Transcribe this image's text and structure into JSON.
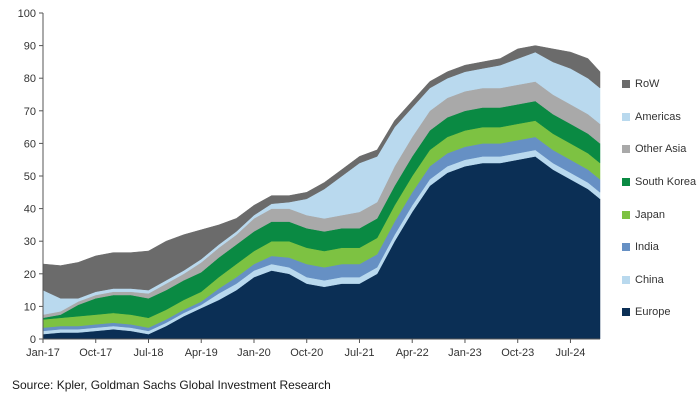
{
  "chart_data": {
    "type": "area",
    "stacked": true,
    "title": "",
    "xlabel": "",
    "ylabel": "",
    "ylim": [
      0,
      100
    ],
    "yticks": [
      0,
      10,
      20,
      30,
      40,
      50,
      60,
      70,
      80,
      90,
      100
    ],
    "grid": false,
    "legend_position": "right",
    "x": [
      2017.0,
      2017.25,
      2017.5,
      2017.75,
      2018.0,
      2018.25,
      2018.5,
      2018.75,
      2019.0,
      2019.25,
      2019.5,
      2019.75,
      2020.0,
      2020.25,
      2020.5,
      2020.75,
      2021.0,
      2021.25,
      2021.5,
      2021.75,
      2022.0,
      2022.25,
      2022.5,
      2022.75,
      2023.0,
      2023.25,
      2023.5,
      2023.75,
      2024.0,
      2024.25,
      2024.5,
      2024.75,
      2024.92
    ],
    "xticks": [
      {
        "label": "Jan-17",
        "x": 2017.0
      },
      {
        "label": "Oct-17",
        "x": 2017.75
      },
      {
        "label": "Jul-18",
        "x": 2018.5
      },
      {
        "label": "Apr-19",
        "x": 2019.25
      },
      {
        "label": "Jan-20",
        "x": 2020.0
      },
      {
        "label": "Oct-20",
        "x": 2020.75
      },
      {
        "label": "Jul-21",
        "x": 2021.5
      },
      {
        "label": "Apr-22",
        "x": 2022.25
      },
      {
        "label": "Jan-23",
        "x": 2023.0
      },
      {
        "label": "Oct-23",
        "x": 2023.75
      },
      {
        "label": "Jul-24",
        "x": 2024.5
      }
    ],
    "series": [
      {
        "name": "Europe",
        "color": "#0b2f55",
        "values": [
          1.5,
          2,
          2,
          2.5,
          3,
          2.5,
          1.5,
          4,
          7,
          9.5,
          12,
          15,
          19,
          21,
          20,
          17,
          16,
          17,
          17,
          20,
          30,
          39,
          47,
          51,
          53,
          54,
          54,
          55,
          56,
          52,
          49,
          46,
          43
        ]
      },
      {
        "name": "China",
        "color": "#b9d9ee",
        "values": [
          1,
          1,
          1,
          1,
          1,
          1,
          1,
          1,
          1,
          1,
          2,
          2,
          2,
          2,
          2,
          2,
          2,
          2,
          2,
          2,
          2,
          2,
          2,
          2,
          2,
          2,
          2,
          2,
          2,
          2,
          2,
          2,
          2
        ]
      },
      {
        "name": "India",
        "color": "#6690c4",
        "values": [
          1,
          1,
          1,
          1,
          1,
          1,
          1,
          1,
          1,
          1,
          1.5,
          2,
          2,
          2.5,
          3,
          4,
          4,
          4,
          4,
          4,
          4,
          4,
          4,
          4,
          4,
          4,
          4,
          4,
          4,
          4,
          4,
          4,
          4
        ]
      },
      {
        "name": "Japan",
        "color": "#7dc242",
        "values": [
          2.5,
          2.5,
          3,
          3,
          3,
          3,
          3,
          3,
          3,
          3,
          3.5,
          4,
          4,
          4.5,
          5,
          5,
          5,
          5,
          5,
          5,
          5,
          5,
          5,
          5,
          5,
          5,
          5,
          5,
          5,
          5,
          5,
          5,
          5
        ]
      },
      {
        "name": "South Korea",
        "color": "#0a8a43",
        "values": [
          0.5,
          1,
          3.5,
          5,
          5.5,
          6,
          6,
          6,
          6,
          6,
          6,
          6,
          6,
          6,
          6,
          6,
          6,
          6,
          6,
          6,
          6,
          6,
          6,
          6,
          6,
          6,
          6,
          6,
          6,
          6,
          6,
          6,
          6
        ]
      },
      {
        "name": "Other Asia",
        "color": "#a9a9a9",
        "values": [
          1,
          1,
          1,
          1,
          1,
          1,
          1.5,
          2,
          2,
          3,
          3,
          3,
          4,
          4,
          4,
          4,
          4,
          4,
          5,
          5,
          6,
          6,
          6,
          6,
          6,
          6,
          6,
          6,
          6,
          6,
          6,
          6,
          6
        ]
      },
      {
        "name": "Americas",
        "color": "#b9d9ee",
        "values": [
          7.5,
          4,
          1,
          1,
          1,
          1,
          1,
          1,
          1,
          1,
          1,
          1,
          1,
          1.5,
          2,
          5,
          9,
          12,
          15,
          14,
          12,
          9,
          7,
          6,
          6,
          6,
          7,
          8,
          9,
          10,
          11,
          11,
          11
        ]
      },
      {
        "name": "RoW",
        "color": "#6b6b6b",
        "values": [
          8,
          10,
          11,
          11,
          11,
          11,
          12,
          12,
          11,
          9,
          6,
          4,
          3,
          2.5,
          2,
          2,
          2,
          2,
          2,
          2,
          2,
          2,
          2,
          2,
          2,
          2,
          2,
          3,
          2,
          4,
          5,
          6,
          5
        ]
      }
    ],
    "legend": [
      "RoW",
      "Americas",
      "Other Asia",
      "South Korea",
      "Japan",
      "India",
      "China",
      "Europe"
    ]
  },
  "source_note": "Source: Kpler, Goldman Sachs Global Investment Research"
}
